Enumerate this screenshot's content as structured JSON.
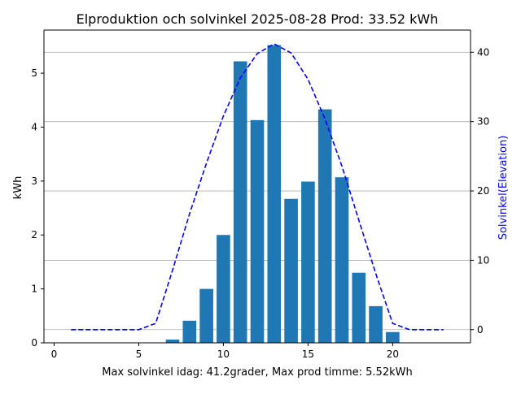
{
  "chart_data": {
    "type": "bar",
    "title": "Elproduktion och solvinkel 2025-08-28 Prod: 33.52 kWh",
    "xlabel": "Max solvinkel idag: 41.2grader, Max prod timme: 5.52kWh",
    "ylabel": "kWh",
    "ylabel_right": "Solvinkel(Elevation)",
    "xlim": [
      -0.6,
      24.6
    ],
    "ylim": [
      0,
      5.8
    ],
    "ylim_right": [
      -1.9,
      43.2
    ],
    "x_ticks": [
      0,
      5,
      10,
      15,
      20
    ],
    "y_ticks": [
      0,
      1,
      2,
      3,
      4,
      5
    ],
    "y_ticks_right": [
      0,
      10,
      20,
      30,
      40
    ],
    "grid": "horizontal lines at right-axis ticks",
    "bar_color": "#1f77b4",
    "line_color": "#0000ff",
    "ylabel_right_color": "#0000ff",
    "bars": {
      "x": [
        7,
        8,
        9,
        10,
        11,
        12,
        13,
        14,
        15,
        16,
        17,
        18,
        19,
        20
      ],
      "values": [
        0.06,
        0.41,
        1.0,
        2.0,
        5.22,
        4.13,
        5.52,
        2.67,
        2.99,
        4.33,
        3.07,
        1.3,
        0.68,
        0.2
      ]
    },
    "line": {
      "style": "dashed",
      "x": [
        1,
        2,
        3,
        4,
        5,
        6,
        7,
        8,
        9,
        10,
        11,
        12,
        13,
        14,
        15,
        16,
        17,
        18,
        19,
        20,
        21,
        22,
        23
      ],
      "values": [
        0,
        0,
        0,
        0,
        0,
        0.9,
        8.6,
        16.7,
        24.0,
        30.8,
        36.3,
        39.8,
        41.2,
        39.9,
        36.1,
        30.4,
        23.6,
        15.8,
        8.1,
        0.9,
        0,
        0,
        0
      ]
    }
  }
}
